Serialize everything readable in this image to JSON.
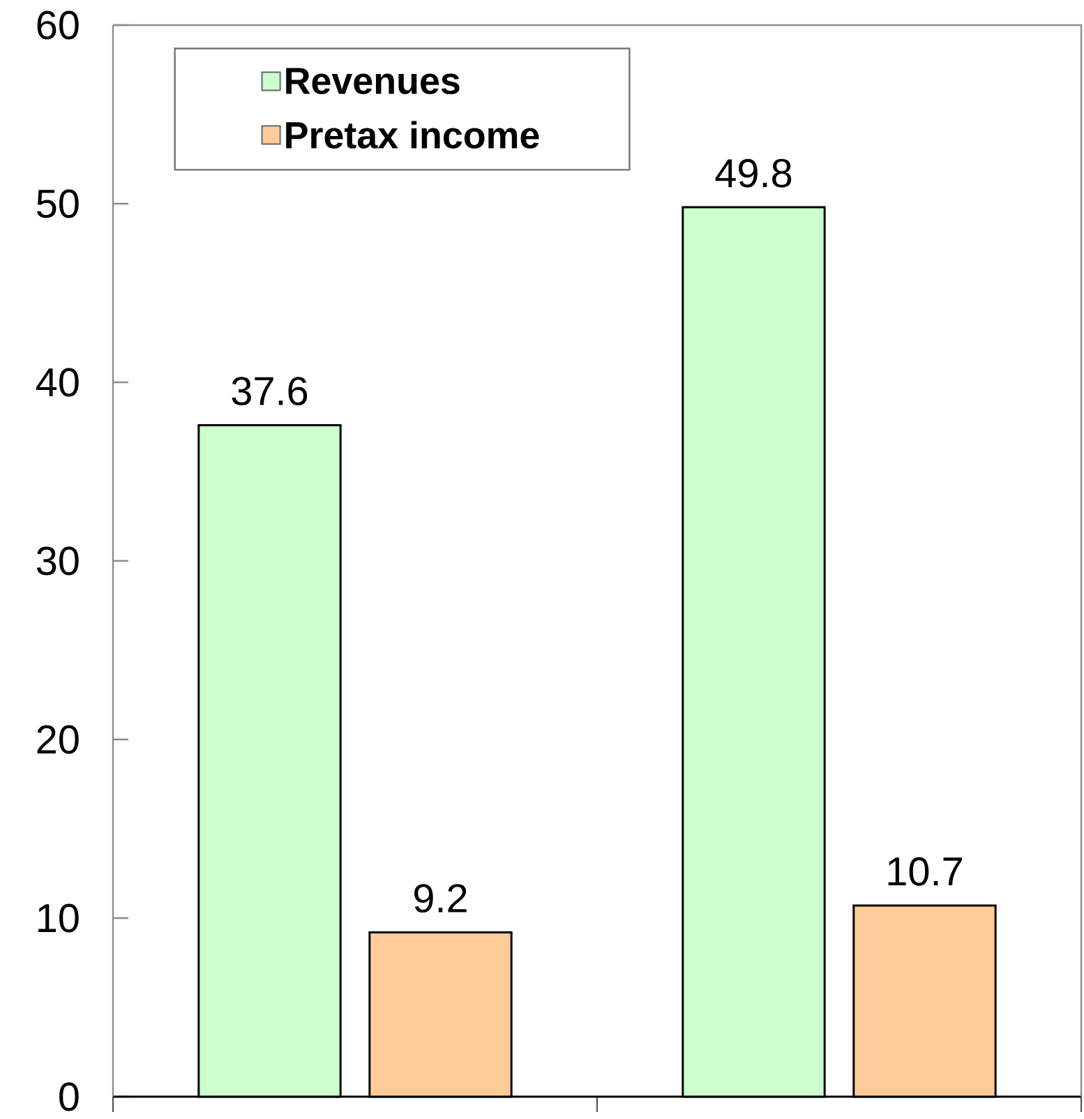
{
  "chart_data": {
    "type": "bar",
    "categories": [
      null,
      null
    ],
    "series": [
      {
        "name": "Revenues",
        "color": "#ccffcc",
        "values": [
          37.6,
          49.8
        ]
      },
      {
        "name": "Pretax income",
        "color": "#ffcc99",
        "values": [
          9.2,
          10.7
        ]
      }
    ],
    "ylim": [
      0,
      60
    ],
    "yticks": [
      0,
      10,
      20,
      30,
      40,
      50,
      60
    ],
    "data_labels": true,
    "legend": "top left"
  }
}
